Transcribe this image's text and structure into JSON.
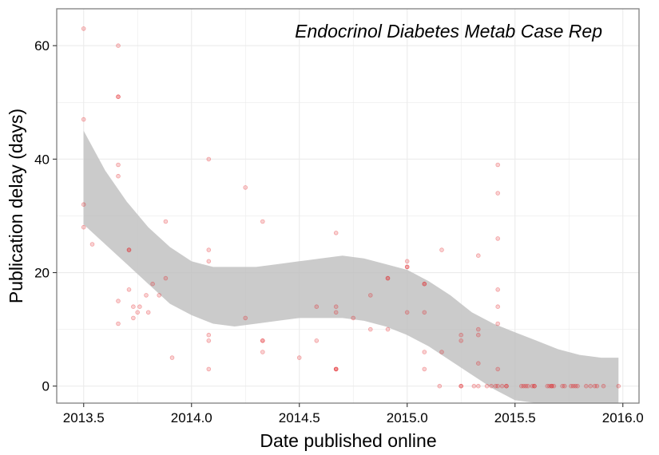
{
  "chart_data": {
    "type": "scatter",
    "title": "Endocrinol Diabetes Metab Case Rep",
    "xlabel": "Date published online",
    "ylabel": "Publication delay (days)",
    "xlim": [
      2013.375,
      2016.075
    ],
    "ylim": [
      -3,
      66.5
    ],
    "x_ticks": [
      2013.5,
      2014.0,
      2014.5,
      2015.0,
      2015.5,
      2016.0
    ],
    "x_tick_labels": [
      "2013.5",
      "2014.0",
      "2014.5",
      "2015.0",
      "2015.5",
      "2016.0"
    ],
    "y_ticks": [
      0,
      20,
      40,
      60
    ],
    "y_tick_labels": [
      "0",
      "20",
      "40",
      "60"
    ],
    "grid": true,
    "colors": {
      "points": "#e31a1c",
      "band": "#bdbdbd",
      "grid": "#ebebeb",
      "border": "#7f7f7f"
    },
    "points": [
      [
        2013.5,
        63
      ],
      [
        2013.5,
        47
      ],
      [
        2013.5,
        32
      ],
      [
        2013.5,
        28
      ],
      [
        2013.54,
        25
      ],
      [
        2013.66,
        60
      ],
      [
        2013.66,
        51
      ],
      [
        2013.66,
        51
      ],
      [
        2013.66,
        39
      ],
      [
        2013.66,
        37
      ],
      [
        2013.66,
        15
      ],
      [
        2013.66,
        11
      ],
      [
        2013.71,
        24
      ],
      [
        2013.71,
        24
      ],
      [
        2013.71,
        17
      ],
      [
        2013.73,
        14
      ],
      [
        2013.73,
        12
      ],
      [
        2013.75,
        13
      ],
      [
        2013.76,
        14
      ],
      [
        2013.79,
        16
      ],
      [
        2013.8,
        13
      ],
      [
        2013.82,
        18
      ],
      [
        2013.85,
        16
      ],
      [
        2013.88,
        29
      ],
      [
        2013.88,
        19
      ],
      [
        2013.91,
        5
      ],
      [
        2014.08,
        40
      ],
      [
        2014.08,
        24
      ],
      [
        2014.08,
        22
      ],
      [
        2014.08,
        9
      ],
      [
        2014.08,
        8
      ],
      [
        2014.08,
        3
      ],
      [
        2014.25,
        35
      ],
      [
        2014.25,
        12
      ],
      [
        2014.33,
        29
      ],
      [
        2014.33,
        8
      ],
      [
        2014.33,
        8
      ],
      [
        2014.33,
        6
      ],
      [
        2014.5,
        5
      ],
      [
        2014.58,
        14
      ],
      [
        2014.58,
        8
      ],
      [
        2014.67,
        27
      ],
      [
        2014.67,
        14
      ],
      [
        2014.67,
        13
      ],
      [
        2014.67,
        3
      ],
      [
        2014.67,
        3
      ],
      [
        2014.67,
        3
      ],
      [
        2014.75,
        12
      ],
      [
        2014.83,
        16
      ],
      [
        2014.83,
        10
      ],
      [
        2014.91,
        19
      ],
      [
        2014.91,
        19
      ],
      [
        2014.91,
        10
      ],
      [
        2015.0,
        22
      ],
      [
        2015.0,
        21
      ],
      [
        2015.0,
        21
      ],
      [
        2015.0,
        13
      ],
      [
        2015.08,
        18
      ],
      [
        2015.08,
        18
      ],
      [
        2015.08,
        13
      ],
      [
        2015.08,
        6
      ],
      [
        2015.08,
        3
      ],
      [
        2015.15,
        0
      ],
      [
        2015.16,
        24
      ],
      [
        2015.16,
        6
      ],
      [
        2015.25,
        9
      ],
      [
        2015.25,
        8
      ],
      [
        2015.25,
        0
      ],
      [
        2015.25,
        0
      ],
      [
        2015.31,
        0
      ],
      [
        2015.33,
        23
      ],
      [
        2015.33,
        10
      ],
      [
        2015.33,
        9
      ],
      [
        2015.33,
        4
      ],
      [
        2015.33,
        0
      ],
      [
        2015.37,
        0
      ],
      [
        2015.39,
        0
      ],
      [
        2015.41,
        0
      ],
      [
        2015.42,
        39
      ],
      [
        2015.42,
        34
      ],
      [
        2015.42,
        26
      ],
      [
        2015.42,
        17
      ],
      [
        2015.42,
        14
      ],
      [
        2015.42,
        11
      ],
      [
        2015.42,
        3
      ],
      [
        2015.42,
        0
      ],
      [
        2015.44,
        0
      ],
      [
        2015.46,
        0
      ],
      [
        2015.46,
        0
      ],
      [
        2015.53,
        0
      ],
      [
        2015.54,
        0
      ],
      [
        2015.55,
        0
      ],
      [
        2015.56,
        0
      ],
      [
        2015.58,
        0
      ],
      [
        2015.59,
        0
      ],
      [
        2015.59,
        0
      ],
      [
        2015.65,
        0
      ],
      [
        2015.66,
        0
      ],
      [
        2015.67,
        0
      ],
      [
        2015.67,
        0
      ],
      [
        2015.68,
        0
      ],
      [
        2015.72,
        0
      ],
      [
        2015.73,
        0
      ],
      [
        2015.76,
        0
      ],
      [
        2015.77,
        0
      ],
      [
        2015.78,
        0
      ],
      [
        2015.79,
        0
      ],
      [
        2015.83,
        0
      ],
      [
        2015.85,
        0
      ],
      [
        2015.87,
        0
      ],
      [
        2015.88,
        0
      ],
      [
        2015.91,
        0
      ],
      [
        2015.98,
        0
      ]
    ],
    "ci_band": {
      "x": [
        2013.5,
        2013.6,
        2013.7,
        2013.8,
        2013.9,
        2014.0,
        2014.1,
        2014.2,
        2014.3,
        2014.4,
        2014.5,
        2014.6,
        2014.7,
        2014.8,
        2014.9,
        2015.0,
        2015.1,
        2015.2,
        2015.3,
        2015.4,
        2015.5,
        2015.6,
        2015.7,
        2015.8,
        2015.9,
        2015.98
      ],
      "lower": [
        28.5,
        25,
        21.5,
        18,
        14.5,
        12.5,
        11,
        10.5,
        11,
        11.5,
        12,
        12,
        12,
        11.5,
        10.5,
        9,
        7,
        4.5,
        2,
        -0.5,
        -2.5,
        -4,
        -5,
        -5.5,
        -5.5,
        -5.5
      ],
      "upper": [
        45,
        38,
        32.5,
        28,
        24.5,
        22,
        21,
        21,
        21,
        21.5,
        22,
        22.5,
        23,
        22.5,
        21.5,
        20.5,
        18.5,
        16,
        13,
        11,
        9.5,
        8,
        6.5,
        5.5,
        5,
        5
      ]
    }
  }
}
